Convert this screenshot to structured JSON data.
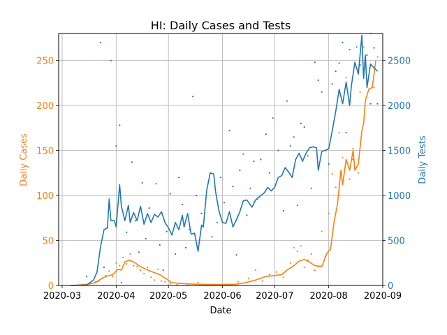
{
  "chart_data": {
    "type": "line",
    "title": "HI: Daily Cases and Tests",
    "xlabel": "Date",
    "ylabel_left": "Daily Cases",
    "ylabel_right": "Daily Tests",
    "x_range": [
      "2020-02-28",
      "2020-09-01"
    ],
    "x_ticks": [
      "2020-03",
      "2020-04",
      "2020-05",
      "2020-06",
      "2020-07",
      "2020-08",
      "2020-09"
    ],
    "ylim_left": [
      0,
      280
    ],
    "ylim_right": [
      0,
      2800
    ],
    "yticks_left": [
      0,
      50,
      100,
      150,
      200,
      250
    ],
    "yticks_right": [
      0,
      500,
      1000,
      1500,
      2000,
      2500
    ],
    "grid": true,
    "colors": {
      "cases": "#ff7f0e",
      "tests": "#1f77b4",
      "grid": "#b0b0b0"
    },
    "series": [
      {
        "axis": "left",
        "style": "line",
        "color": "#ff7f0e",
        "points": [
          [
            "2020-03-06",
            0
          ],
          [
            "2020-03-15",
            1
          ],
          [
            "2020-03-20",
            3
          ],
          [
            "2020-03-24",
            8
          ],
          [
            "2020-03-26",
            10
          ],
          [
            "2020-03-30",
            12
          ],
          [
            "2020-04-02",
            18
          ],
          [
            "2020-04-04",
            17
          ],
          [
            "2020-04-06",
            26
          ],
          [
            "2020-04-08",
            28
          ],
          [
            "2020-04-10",
            27
          ],
          [
            "2020-04-12",
            25
          ],
          [
            "2020-04-14",
            22
          ],
          [
            "2020-04-18",
            18
          ],
          [
            "2020-04-22",
            15
          ],
          [
            "2020-04-26",
            12
          ],
          [
            "2020-04-30",
            7
          ],
          [
            "2020-05-03",
            3
          ],
          [
            "2020-05-10",
            2
          ],
          [
            "2020-05-20",
            1
          ],
          [
            "2020-05-31",
            1
          ],
          [
            "2020-06-08",
            1
          ],
          [
            "2020-06-14",
            3
          ],
          [
            "2020-06-20",
            6
          ],
          [
            "2020-06-26",
            10
          ],
          [
            "2020-07-01",
            11
          ],
          [
            "2020-07-05",
            12
          ],
          [
            "2020-07-08",
            17
          ],
          [
            "2020-07-12",
            22
          ],
          [
            "2020-07-15",
            27
          ],
          [
            "2020-07-18",
            29
          ],
          [
            "2020-07-21",
            26
          ],
          [
            "2020-07-24",
            22
          ],
          [
            "2020-07-28",
            21
          ],
          [
            "2020-07-31",
            36
          ],
          [
            "2020-08-02",
            40
          ],
          [
            "2020-08-04",
            70
          ],
          [
            "2020-08-06",
            90
          ],
          [
            "2020-08-08",
            128
          ],
          [
            "2020-08-09",
            112
          ],
          [
            "2020-08-11",
            140
          ],
          [
            "2020-08-13",
            128
          ],
          [
            "2020-08-15",
            150
          ],
          [
            "2020-08-16",
            128
          ],
          [
            "2020-08-18",
            135
          ],
          [
            "2020-08-20",
            172
          ],
          [
            "2020-08-21",
            180
          ],
          [
            "2020-08-22",
            205
          ],
          [
            "2020-08-24",
            218
          ],
          [
            "2020-08-26",
            220
          ],
          [
            "2020-08-28",
            250
          ]
        ]
      },
      {
        "axis": "right",
        "style": "line",
        "color": "#1f77b4",
        "points": [
          [
            "2020-03-06",
            0
          ],
          [
            "2020-03-15",
            5
          ],
          [
            "2020-03-19",
            60
          ],
          [
            "2020-03-21",
            150
          ],
          [
            "2020-03-23",
            430
          ],
          [
            "2020-03-25",
            620
          ],
          [
            "2020-03-27",
            640
          ],
          [
            "2020-03-28",
            960
          ],
          [
            "2020-03-29",
            720
          ],
          [
            "2020-03-31",
            720
          ],
          [
            "2020-04-01",
            650
          ],
          [
            "2020-04-03",
            1120
          ],
          [
            "2020-04-04",
            880
          ],
          [
            "2020-04-06",
            720
          ],
          [
            "2020-04-08",
            890
          ],
          [
            "2020-04-09",
            700
          ],
          [
            "2020-04-11",
            810
          ],
          [
            "2020-04-13",
            720
          ],
          [
            "2020-04-15",
            880
          ],
          [
            "2020-04-17",
            680
          ],
          [
            "2020-04-19",
            800
          ],
          [
            "2020-04-21",
            700
          ],
          [
            "2020-04-23",
            790
          ],
          [
            "2020-04-25",
            760
          ],
          [
            "2020-04-27",
            820
          ],
          [
            "2020-04-29",
            700
          ],
          [
            "2020-05-01",
            640
          ],
          [
            "2020-05-03",
            560
          ],
          [
            "2020-05-05",
            700
          ],
          [
            "2020-05-07",
            620
          ],
          [
            "2020-05-09",
            780
          ],
          [
            "2020-05-10",
            650
          ],
          [
            "2020-05-12",
            800
          ],
          [
            "2020-05-14",
            570
          ],
          [
            "2020-05-16",
            580
          ],
          [
            "2020-05-18",
            380
          ],
          [
            "2020-05-20",
            670
          ],
          [
            "2020-05-21",
            650
          ],
          [
            "2020-05-23",
            1060
          ],
          [
            "2020-05-25",
            1250
          ],
          [
            "2020-05-27",
            1240
          ],
          [
            "2020-05-28",
            1050
          ],
          [
            "2020-05-30",
            830
          ],
          [
            "2020-06-01",
            700
          ],
          [
            "2020-06-03",
            690
          ],
          [
            "2020-06-05",
            820
          ],
          [
            "2020-06-07",
            650
          ],
          [
            "2020-06-09",
            730
          ],
          [
            "2020-06-11",
            820
          ],
          [
            "2020-06-13",
            940
          ],
          [
            "2020-06-15",
            950
          ],
          [
            "2020-06-18",
            870
          ],
          [
            "2020-06-20",
            950
          ],
          [
            "2020-06-23",
            1000
          ],
          [
            "2020-06-25",
            1030
          ],
          [
            "2020-06-27",
            1090
          ],
          [
            "2020-06-29",
            1050
          ],
          [
            "2020-07-01",
            1090
          ],
          [
            "2020-07-03",
            1200
          ],
          [
            "2020-07-05",
            1220
          ],
          [
            "2020-07-07",
            1310
          ],
          [
            "2020-07-09",
            1260
          ],
          [
            "2020-07-11",
            1200
          ],
          [
            "2020-07-13",
            1400
          ],
          [
            "2020-07-15",
            1470
          ],
          [
            "2020-07-17",
            1380
          ],
          [
            "2020-07-19",
            1470
          ],
          [
            "2020-07-21",
            1530
          ],
          [
            "2020-07-23",
            1540
          ],
          [
            "2020-07-25",
            1530
          ],
          [
            "2020-07-26",
            1280
          ],
          [
            "2020-07-28",
            1490
          ],
          [
            "2020-07-30",
            1500
          ],
          [
            "2020-08-01",
            1520
          ],
          [
            "2020-08-03",
            1720
          ],
          [
            "2020-08-05",
            1930
          ],
          [
            "2020-08-07",
            2180
          ],
          [
            "2020-08-09",
            2020
          ],
          [
            "2020-08-11",
            2260
          ],
          [
            "2020-08-13",
            2000
          ],
          [
            "2020-08-14",
            2220
          ],
          [
            "2020-08-16",
            2480
          ],
          [
            "2020-08-18",
            2350
          ],
          [
            "2020-08-20",
            2780
          ],
          [
            "2020-08-21",
            2300
          ],
          [
            "2020-08-22",
            2560
          ],
          [
            "2020-08-23",
            2200
          ],
          [
            "2020-08-25",
            2460
          ],
          [
            "2020-08-27",
            2420
          ],
          [
            "2020-08-29",
            2380
          ]
        ]
      },
      {
        "axis": "left",
        "style": "scatter",
        "color": "#ff7f0e",
        "points": [
          [
            "2020-03-13",
            1
          ],
          [
            "2020-03-17",
            2
          ],
          [
            "2020-03-20",
            4
          ],
          [
            "2020-03-22",
            5
          ],
          [
            "2020-03-24",
            8
          ],
          [
            "2020-03-26",
            11
          ],
          [
            "2020-03-28",
            16
          ],
          [
            "2020-03-30",
            10
          ],
          [
            "2020-04-01",
            25
          ],
          [
            "2020-04-03",
            22
          ],
          [
            "2020-04-05",
            31
          ],
          [
            "2020-04-07",
            24
          ],
          [
            "2020-04-09",
            35
          ],
          [
            "2020-04-11",
            22
          ],
          [
            "2020-04-13",
            21
          ],
          [
            "2020-04-15",
            17
          ],
          [
            "2020-04-17",
            13
          ],
          [
            "2020-04-19",
            20
          ],
          [
            "2020-04-21",
            9
          ],
          [
            "2020-04-23",
            6
          ],
          [
            "2020-04-25",
            18
          ],
          [
            "2020-04-27",
            5
          ],
          [
            "2020-04-29",
            4
          ],
          [
            "2020-05-02",
            2
          ],
          [
            "2020-05-06",
            1
          ],
          [
            "2020-05-12",
            0
          ],
          [
            "2020-05-18",
            3
          ],
          [
            "2020-05-26",
            1
          ],
          [
            "2020-06-02",
            1
          ],
          [
            "2020-06-10",
            4
          ],
          [
            "2020-06-16",
            8
          ],
          [
            "2020-06-20",
            17
          ],
          [
            "2020-06-24",
            5
          ],
          [
            "2020-06-28",
            12
          ],
          [
            "2020-07-02",
            15
          ],
          [
            "2020-07-06",
            9
          ],
          [
            "2020-07-10",
            25
          ],
          [
            "2020-07-12",
            42
          ],
          [
            "2020-07-14",
            38
          ],
          [
            "2020-07-16",
            44
          ],
          [
            "2020-07-18",
            20
          ],
          [
            "2020-07-20",
            28
          ],
          [
            "2020-07-22",
            35
          ],
          [
            "2020-07-24",
            17
          ],
          [
            "2020-07-26",
            21
          ],
          [
            "2020-07-28",
            60
          ],
          [
            "2020-07-30",
            32
          ],
          [
            "2020-08-01",
            80
          ],
          [
            "2020-08-03",
            124
          ],
          [
            "2020-08-05",
            109
          ],
          [
            "2020-08-07",
            170
          ],
          [
            "2020-08-09",
            142
          ],
          [
            "2020-08-11",
            231
          ],
          [
            "2020-08-13",
            118
          ],
          [
            "2020-08-15",
            152
          ],
          [
            "2020-08-18",
            125
          ],
          [
            "2020-08-19",
            215
          ],
          [
            "2020-08-21",
            265
          ],
          [
            "2020-08-23",
            225
          ],
          [
            "2020-08-25",
            280
          ],
          [
            "2020-08-27",
            220
          ],
          [
            "2020-08-29",
            254
          ]
        ]
      },
      {
        "axis": "right",
        "style": "scatter",
        "color": "#1f77b4",
        "points": [
          [
            "2020-03-15",
            100
          ],
          [
            "2020-03-23",
            2700
          ],
          [
            "2020-03-25",
            200
          ],
          [
            "2020-03-27",
            650
          ],
          [
            "2020-03-29",
            2500
          ],
          [
            "2020-04-01",
            1550
          ],
          [
            "2020-04-03",
            1780
          ],
          [
            "2020-04-04",
            30
          ],
          [
            "2020-04-07",
            590
          ],
          [
            "2020-04-10",
            1370
          ],
          [
            "2020-04-12",
            720
          ],
          [
            "2020-04-14",
            370
          ],
          [
            "2020-04-16",
            1140
          ],
          [
            "2020-04-18",
            520
          ],
          [
            "2020-04-20",
            860
          ],
          [
            "2020-04-24",
            1130
          ],
          [
            "2020-04-26",
            450
          ],
          [
            "2020-04-28",
            170
          ],
          [
            "2020-04-30",
            600
          ],
          [
            "2020-05-02",
            1020
          ],
          [
            "2020-05-05",
            350
          ],
          [
            "2020-05-07",
            1200
          ],
          [
            "2020-05-09",
            900
          ],
          [
            "2020-05-11",
            420
          ],
          [
            "2020-05-13",
            620
          ],
          [
            "2020-05-15",
            2100
          ],
          [
            "2020-05-17",
            1000
          ],
          [
            "2020-05-20",
            800
          ],
          [
            "2020-05-24",
            1150
          ],
          [
            "2020-05-26",
            540
          ],
          [
            "2020-05-29",
            700
          ],
          [
            "2020-05-31",
            1200
          ],
          [
            "2020-06-02",
            920
          ],
          [
            "2020-06-05",
            1720
          ],
          [
            "2020-06-07",
            1100
          ],
          [
            "2020-06-09",
            340
          ],
          [
            "2020-06-11",
            1280
          ],
          [
            "2020-06-13",
            1460
          ],
          [
            "2020-06-15",
            780
          ],
          [
            "2020-06-17",
            1080
          ],
          [
            "2020-06-19",
            1380
          ],
          [
            "2020-06-21",
            960
          ],
          [
            "2020-06-23",
            1400
          ],
          [
            "2020-06-26",
            1680
          ],
          [
            "2020-06-28",
            1250
          ],
          [
            "2020-06-30",
            1860
          ],
          [
            "2020-07-03",
            1500
          ],
          [
            "2020-07-06",
            830
          ],
          [
            "2020-07-08",
            2050
          ],
          [
            "2020-07-10",
            1550
          ],
          [
            "2020-07-12",
            1650
          ],
          [
            "2020-07-14",
            890
          ],
          [
            "2020-07-16",
            1800
          ],
          [
            "2020-07-18",
            1760
          ],
          [
            "2020-07-20",
            1440
          ],
          [
            "2020-07-22",
            1080
          ],
          [
            "2020-07-24",
            2480
          ],
          [
            "2020-07-26",
            2280
          ],
          [
            "2020-07-28",
            2150
          ],
          [
            "2020-07-30",
            1500
          ],
          [
            "2020-08-01",
            1350
          ],
          [
            "2020-08-03",
            2240
          ],
          [
            "2020-08-05",
            2380
          ],
          [
            "2020-08-07",
            2470
          ],
          [
            "2020-08-09",
            2700
          ],
          [
            "2020-08-11",
            1700
          ],
          [
            "2020-08-13",
            2620
          ],
          [
            "2020-08-15",
            1400
          ],
          [
            "2020-08-17",
            2650
          ],
          [
            "2020-08-19",
            2450
          ],
          [
            "2020-08-21",
            2350
          ],
          [
            "2020-08-23",
            2560
          ],
          [
            "2020-08-25",
            2020
          ],
          [
            "2020-08-27",
            2640
          ],
          [
            "2020-08-29",
            2020
          ]
        ]
      }
    ]
  }
}
